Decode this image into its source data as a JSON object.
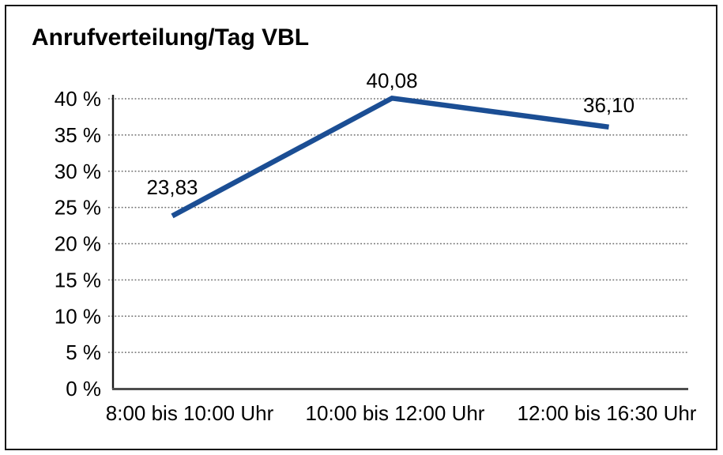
{
  "chart": {
    "title": "Anrufverteilung/Tag VBL"
  },
  "chart_data": {
    "type": "line",
    "title": "Anrufverteilung/Tag VBL",
    "categories": [
      "8:00 bis 10:00 Uhr",
      "10:00 bis 12:00 Uhr",
      "12:00 bis 16:30 Uhr"
    ],
    "values": [
      23.83,
      40.08,
      36.1
    ],
    "value_labels": [
      "23,83",
      "40,08",
      "36,10"
    ],
    "xlabel": "",
    "ylabel": "",
    "ylim": [
      0,
      40
    ],
    "ytick_step": 5,
    "ytick_labels": [
      "0 %",
      "5 %",
      "10 %",
      "15 %",
      "20 %",
      "25 %",
      "30 %",
      "35 %",
      "40 %"
    ],
    "grid": "horizontal-dotted",
    "legend": "none",
    "colors": {
      "line": "#1B4E94",
      "y_axis": "#1a1a1a",
      "x_axis": "#4d4d4d",
      "grid_dots": "#6e6e6e",
      "text": "#000000",
      "border": "#161616",
      "background": "#ffffff"
    }
  }
}
